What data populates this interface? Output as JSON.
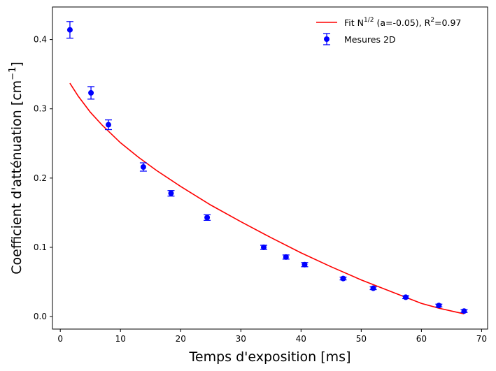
{
  "chart_data": {
    "type": "scatter",
    "title": "",
    "xlabel": "Temps d'exposition [ms]",
    "ylabel_main": "Coefficient d'atténuation [cm",
    "ylabel_sup": "−1",
    "ylabel_end": "]",
    "xlim": [
      -1.3,
      71
    ],
    "ylim": [
      -0.018,
      0.447
    ],
    "x_ticks": [
      0,
      10,
      20,
      30,
      40,
      50,
      60,
      70
    ],
    "y_ticks": [
      0.0,
      0.1,
      0.2,
      0.3,
      0.4
    ],
    "x_tick_labels": [
      "0",
      "10",
      "20",
      "30",
      "40",
      "50",
      "60",
      "70"
    ],
    "y_tick_labels": [
      "0.0",
      "0.1",
      "0.2",
      "0.3",
      "0.4"
    ],
    "grid": false,
    "legend_position": "top-right",
    "series": [
      {
        "name": "Mesures 2D",
        "kind": "errorbar",
        "color": "#0000ff",
        "x": [
          1.6,
          5.1,
          8.0,
          13.8,
          18.4,
          24.4,
          33.8,
          37.5,
          40.6,
          47.0,
          52.0,
          57.4,
          62.9,
          67.1
        ],
        "y": [
          0.414,
          0.323,
          0.277,
          0.216,
          0.178,
          0.143,
          0.1,
          0.086,
          0.075,
          0.055,
          0.041,
          0.028,
          0.016,
          0.008
        ],
        "yerr": [
          0.012,
          0.009,
          0.007,
          0.006,
          0.004,
          0.004,
          0.003,
          0.003,
          0.003,
          0.002,
          0.002,
          0.002,
          0.002,
          0.002
        ]
      },
      {
        "name_main": "Fit N",
        "name_sup1": "1/2",
        "name_mid": " (a=-0.05), R",
        "name_sup2": "2",
        "name_end": "=0.97",
        "kind": "line",
        "color": "#ff0000",
        "x": [
          1.6,
          3,
          5,
          7,
          10,
          13,
          16,
          20,
          25,
          30,
          35,
          40,
          45,
          50,
          55,
          60,
          63,
          65,
          67.1
        ],
        "y": [
          0.337,
          0.318,
          0.295,
          0.276,
          0.251,
          0.23,
          0.211,
          0.188,
          0.161,
          0.137,
          0.114,
          0.092,
          0.072,
          0.053,
          0.036,
          0.019,
          0.012,
          0.008,
          0.004
        ]
      }
    ]
  }
}
